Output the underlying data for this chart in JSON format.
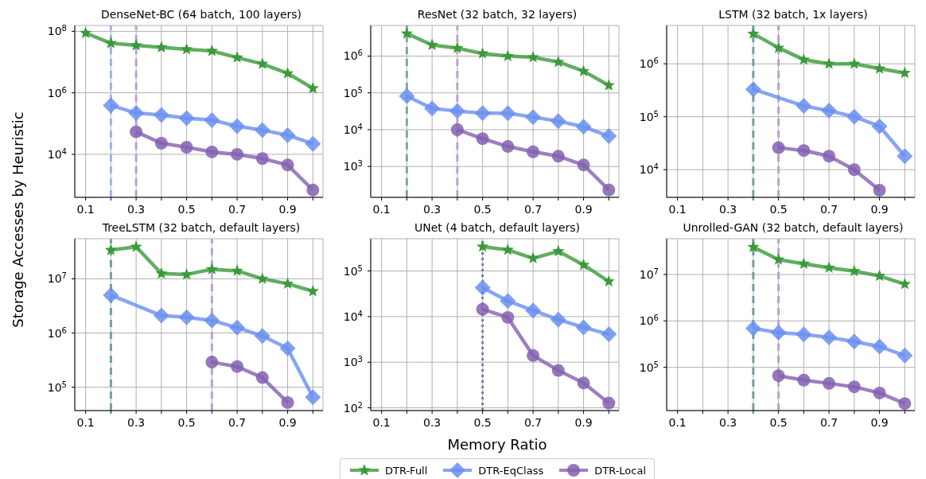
{
  "chart_data": [
    {
      "type": "line",
      "title": "DenseNet-BC (64 batch, 100 layers)",
      "legend": "bottom",
      "log": "y",
      "grid": true,
      "xlim": [
        0.057,
        1.04
      ],
      "xticks": [
        0.1,
        {
          "value": 0.2,
          "label": null
        },
        0.3,
        {
          "value": 0.4,
          "label": null
        },
        0.5,
        {
          "value": 0.6,
          "label": null
        },
        0.7,
        {
          "value": 0.8,
          "label": null
        },
        0.9,
        {
          "value": 1.0,
          "label": null
        }
      ],
      "ylim": [
        400,
        155000000
      ],
      "yticks": [
        {
          "value": 10000,
          "label": "10$^{4}$"
        },
        {
          "value": 1000000,
          "label": "10$^{6}$"
        },
        {
          "value": 100000000,
          "label": "10$^{8}$"
        }
      ],
      "series": [
        {
          "name": "DTR-Full",
          "color": "#3a9a3a",
          "marker": "star",
          "x": [
            0.1,
            0.2,
            0.3,
            0.4,
            0.5,
            0.6,
            0.7,
            0.8,
            0.9,
            1.0
          ],
          "values": [
            88000000,
            41000000,
            35000000,
            30000000,
            26000000,
            23000000,
            14000000,
            8700000,
            4300000,
            1400000
          ]
        },
        {
          "name": "DTR-EqClass",
          "color": "#6a8ff0",
          "marker": "diamond",
          "x": [
            0.2,
            0.3,
            0.4,
            0.5,
            0.6,
            0.7,
            0.8,
            0.9,
            1.0
          ],
          "values": [
            390000,
            220000,
            190000,
            150000,
            130000,
            83000,
            61000,
            42000,
            22000
          ]
        },
        {
          "name": "DTR-Local",
          "color": "#8460b0",
          "marker": "circle",
          "x": [
            0.3,
            0.4,
            0.5,
            0.6,
            0.7,
            0.8,
            0.9,
            1.0
          ],
          "values": [
            54000,
            23000,
            17000,
            12000,
            10000,
            7300,
            4500,
            690
          ]
        }
      ],
      "ref_lines": [
        {
          "axis": "x",
          "value": 0.2,
          "color": "#9db3f0",
          "line_style": "dashed"
        },
        {
          "axis": "x",
          "value": 0.3,
          "color": "#b8a3d2",
          "line_style": "dashed"
        }
      ]
    },
    {
      "type": "line",
      "title": "ResNet (32 batch, 32 layers)",
      "log": "y",
      "grid": true,
      "xlim": [
        0.057,
        1.04
      ],
      "xticks": [
        0.1,
        {
          "value": 0.2,
          "label": null
        },
        0.3,
        {
          "value": 0.4,
          "label": null
        },
        0.5,
        {
          "value": 0.6,
          "label": null
        },
        0.7,
        {
          "value": 0.8,
          "label": null
        },
        0.9,
        {
          "value": 1.0,
          "label": null
        }
      ],
      "ylim": [
        145,
        6800000
      ],
      "yticks": [
        {
          "value": 1000,
          "label": "10$^{3}$"
        },
        {
          "value": 10000,
          "label": "10$^{4}$"
        },
        {
          "value": 100000,
          "label": "10$^{5}$"
        },
        {
          "value": 1000000,
          "label": "10$^{6}$"
        }
      ],
      "series": [
        {
          "color": "#3a9a3a",
          "marker": "star",
          "x": [
            0.2,
            0.3,
            0.4,
            0.5,
            0.6,
            0.7,
            0.8,
            0.9,
            1.0
          ],
          "values": [
            4100000,
            2000000,
            1650000,
            1170000,
            1000000,
            930000,
            690000,
            390000,
            160000
          ]
        },
        {
          "color": "#6a8ff0",
          "marker": "diamond",
          "x": [
            0.2,
            0.3,
            0.4,
            0.5,
            0.6,
            0.7,
            0.8,
            0.9,
            1.0
          ],
          "values": [
            82000,
            38000,
            32000,
            28000,
            28000,
            22000,
            17000,
            12000,
            6700
          ]
        },
        {
          "color": "#8460b0",
          "marker": "circle",
          "x": [
            0.4,
            0.5,
            0.6,
            0.7,
            0.8,
            0.9,
            1.0
          ],
          "values": [
            10000,
            5700,
            3500,
            2500,
            1900,
            1100,
            230
          ]
        }
      ],
      "ref_lines": [
        {
          "axis": "x",
          "value": 0.2,
          "color": "#7fa8a0",
          "line_style": "dashed"
        },
        {
          "axis": "x",
          "value": 0.4,
          "color": "#b8a3d2",
          "line_style": "dashed"
        }
      ]
    },
    {
      "type": "line",
      "title": "LSTM (32 batch, 1x layers)",
      "log": "y",
      "grid": true,
      "xlim": [
        0.057,
        1.04
      ],
      "xticks": [
        0.1,
        {
          "value": 0.2,
          "label": null
        },
        0.3,
        {
          "value": 0.4,
          "label": null
        },
        0.5,
        {
          "value": 0.6,
          "label": null
        },
        0.7,
        {
          "value": 0.8,
          "label": null
        },
        0.9,
        {
          "value": 1.0,
          "label": null
        }
      ],
      "ylim": [
        3000,
        5300000
      ],
      "yticks": [
        {
          "value": 10000,
          "label": "10$^{4}$"
        },
        {
          "value": 100000,
          "label": "10$^{5}$"
        },
        {
          "value": 1000000,
          "label": "10$^{6}$"
        }
      ],
      "series": [
        {
          "color": "#3a9a3a",
          "marker": "star",
          "x": [
            0.4,
            0.5,
            0.6,
            0.7,
            0.8,
            0.9,
            1.0
          ],
          "values": [
            3700000,
            2000000,
            1200000,
            1000000,
            1000000,
            810000,
            670000
          ]
        },
        {
          "color": "#6a8ff0",
          "marker": "diamond",
          "x": [
            0.4,
            0.6,
            0.7,
            0.8,
            0.9,
            1.0
          ],
          "values": [
            330000,
            160000,
            130000,
            100000,
            66000,
            18000
          ]
        },
        {
          "color": "#8460b0",
          "marker": "circle",
          "x": [
            0.5,
            0.6,
            0.7,
            0.8,
            0.9
          ],
          "values": [
            26000,
            23000,
            18000,
            10000,
            4100
          ]
        }
      ],
      "ref_lines": [
        {
          "axis": "x",
          "value": 0.4,
          "color": "#6f9fa8",
          "line_style": "dashed"
        },
        {
          "axis": "x",
          "value": 0.5,
          "color": "#b8a3d2",
          "line_style": "dashed"
        }
      ]
    },
    {
      "type": "line",
      "title": "TreeLSTM (32 batch, default layers)",
      "ylabel": "Storage Accesses by Heuristic",
      "log": "y",
      "grid": true,
      "xlim": [
        0.057,
        1.04
      ],
      "xticks": [
        0.1,
        {
          "value": 0.2,
          "label": null
        },
        0.3,
        {
          "value": 0.4,
          "label": null
        },
        0.5,
        {
          "value": 0.6,
          "label": null
        },
        0.7,
        {
          "value": 0.8,
          "label": null
        },
        0.9,
        {
          "value": 1.0,
          "label": null
        }
      ],
      "ylim": [
        37000,
        55000000
      ],
      "yticks": [
        {
          "value": 100000,
          "label": "10$^{5}$"
        },
        {
          "value": 1000000,
          "label": "10$^{6}$"
        },
        {
          "value": 10000000,
          "label": "10$^{7}$"
        }
      ],
      "series": [
        {
          "color": "#3a9a3a",
          "marker": "star",
          "x": [
            0.2,
            0.3,
            0.4,
            0.5,
            0.6,
            0.7,
            0.8,
            0.9,
            1.0
          ],
          "values": [
            34000000,
            39000000,
            12500000,
            12000000,
            15000000,
            14000000,
            10000000,
            8100000,
            5900000
          ]
        },
        {
          "color": "#6a8ff0",
          "marker": "diamond",
          "x": [
            0.2,
            0.4,
            0.5,
            0.6,
            0.7,
            0.8,
            0.9,
            1.0
          ],
          "values": [
            5000000,
            2100000,
            1950000,
            1700000,
            1260000,
            880000,
            520000,
            65000
          ]
        },
        {
          "color": "#8460b0",
          "marker": "circle",
          "x": [
            0.6,
            0.7,
            0.8,
            0.9
          ],
          "values": [
            290000,
            240000,
            150000,
            52000
          ]
        }
      ],
      "ref_lines": [
        {
          "axis": "x",
          "value": 0.2,
          "color": "#6f9fa8",
          "line_style": "dashed"
        },
        {
          "axis": "x",
          "value": 0.6,
          "color": "#b8a3d2",
          "line_style": "dashed"
        }
      ]
    },
    {
      "type": "line",
      "title": "UNet (4 batch, default layers)",
      "xlabel": "Memory Ratio",
      "log": "y",
      "grid": true,
      "xlim": [
        0.057,
        1.04
      ],
      "xticks": [
        0.1,
        {
          "value": 0.2,
          "label": null
        },
        0.3,
        {
          "value": 0.4,
          "label": null
        },
        0.5,
        {
          "value": 0.6,
          "label": null
        },
        0.7,
        {
          "value": 0.8,
          "label": null
        },
        0.9,
        {
          "value": 1.0,
          "label": null
        }
      ],
      "ylim": [
        87,
        510000
      ],
      "yticks": [
        {
          "value": 100,
          "label": "10$^{2}$"
        },
        {
          "value": 1000,
          "label": "10$^{3}$"
        },
        {
          "value": 10000,
          "label": "10$^{4}$"
        },
        {
          "value": 100000,
          "label": "10$^{5}$"
        }
      ],
      "series": [
        {
          "color": "#3a9a3a",
          "marker": "star",
          "x": [
            0.5,
            0.6,
            0.7,
            0.8,
            0.9,
            1.0
          ],
          "values": [
            340000,
            290000,
            190000,
            270000,
            136000,
            59000
          ]
        },
        {
          "color": "#6a8ff0",
          "marker": "diamond",
          "x": [
            0.5,
            0.6,
            0.7,
            0.8,
            0.9,
            1.0
          ],
          "values": [
            43000,
            22000,
            13600,
            8600,
            5800,
            4100
          ]
        },
        {
          "color": "#8460b0",
          "marker": "circle",
          "x": [
            0.5,
            0.6,
            0.7,
            0.8,
            0.9,
            1.0
          ],
          "values": [
            14500,
            9600,
            1400,
            660,
            350,
            127
          ]
        }
      ],
      "ref_lines": [
        {
          "axis": "x",
          "value": 0.5,
          "color": "#6f80a8",
          "line_style": "dotted"
        }
      ]
    },
    {
      "type": "line",
      "title": "Unrolled-GAN (32 batch, default layers)",
      "log": "y",
      "grid": true,
      "xlim": [
        0.057,
        1.04
      ],
      "xticks": [
        0.1,
        {
          "value": 0.2,
          "label": null
        },
        0.3,
        {
          "value": 0.4,
          "label": null
        },
        0.5,
        {
          "value": 0.6,
          "label": null
        },
        0.7,
        {
          "value": 0.8,
          "label": null
        },
        0.9,
        {
          "value": 1.0,
          "label": null
        }
      ],
      "ylim": [
        11700,
        59000000
      ],
      "yticks": [
        {
          "value": 100000,
          "label": "10$^{5}$"
        },
        {
          "value": 1000000,
          "label": "10$^{6}$"
        },
        {
          "value": 10000000,
          "label": "10$^{7}$"
        }
      ],
      "series": [
        {
          "color": "#3a9a3a",
          "marker": "star",
          "x": [
            0.4,
            0.5,
            0.6,
            0.7,
            0.8,
            0.9,
            1.0
          ],
          "values": [
            39000000,
            21000000,
            17000000,
            14000000,
            11800000,
            9300000,
            6200000
          ]
        },
        {
          "color": "#6a8ff0",
          "marker": "diamond",
          "x": [
            0.4,
            0.5,
            0.6,
            0.7,
            0.8,
            0.9,
            1.0
          ],
          "values": [
            690000,
            560000,
            510000,
            440000,
            360000,
            280000,
            180000
          ]
        },
        {
          "color": "#8460b0",
          "marker": "circle",
          "x": [
            0.5,
            0.6,
            0.7,
            0.8,
            0.9,
            1.0
          ],
          "values": [
            66000,
            53000,
            45000,
            38000,
            28000,
            16600
          ]
        }
      ],
      "ref_lines": [
        {
          "axis": "x",
          "value": 0.4,
          "color": "#6f9fa8",
          "line_style": "dashed"
        },
        {
          "axis": "x",
          "value": 0.5,
          "color": "#b8a3d2",
          "line_style": "dashed"
        }
      ]
    }
  ]
}
